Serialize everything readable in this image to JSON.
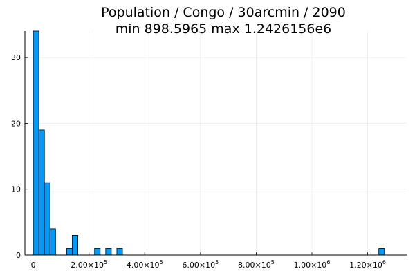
{
  "title": "Population / Congo / 30arcmin / 2090",
  "subtitle": "min 898.5965  max 1.2426156e6",
  "chart_data": {
    "type": "bar",
    "title": "Population / Congo / 30arcmin / 2090",
    "subtitle": "min 898.5965  max 1.2426156e6",
    "xlabel": "",
    "ylabel": "",
    "bin_width": 20000,
    "bins": [
      {
        "start": 0,
        "count": 34
      },
      {
        "start": 20000,
        "count": 19
      },
      {
        "start": 40000,
        "count": 11
      },
      {
        "start": 60000,
        "count": 4
      },
      {
        "start": 120000,
        "count": 1
      },
      {
        "start": 140000,
        "count": 3
      },
      {
        "start": 220000,
        "count": 1
      },
      {
        "start": 260000,
        "count": 1
      },
      {
        "start": 300000,
        "count": 1
      },
      {
        "start": 1240000,
        "count": 1
      }
    ],
    "xlim": [
      -30000,
      1340000
    ],
    "ylim": [
      0,
      34
    ],
    "x_ticks": [
      {
        "value": 0,
        "mantissa": "0",
        "exp": ""
      },
      {
        "value": 200000,
        "mantissa": "2.00×10",
        "exp": "5"
      },
      {
        "value": 400000,
        "mantissa": "4.00×10",
        "exp": "5"
      },
      {
        "value": 600000,
        "mantissa": "6.00×10",
        "exp": "5"
      },
      {
        "value": 800000,
        "mantissa": "8.00×10",
        "exp": "5"
      },
      {
        "value": 1000000,
        "mantissa": "1.00×10",
        "exp": "6"
      },
      {
        "value": 1200000,
        "mantissa": "1.20×10",
        "exp": "6"
      }
    ],
    "y_ticks": [
      0,
      10,
      20,
      30
    ],
    "grid": true,
    "legend": "none",
    "bar_color": "#009af9",
    "bar_stroke": "#000000",
    "grid_color": "#e5e5e5"
  }
}
